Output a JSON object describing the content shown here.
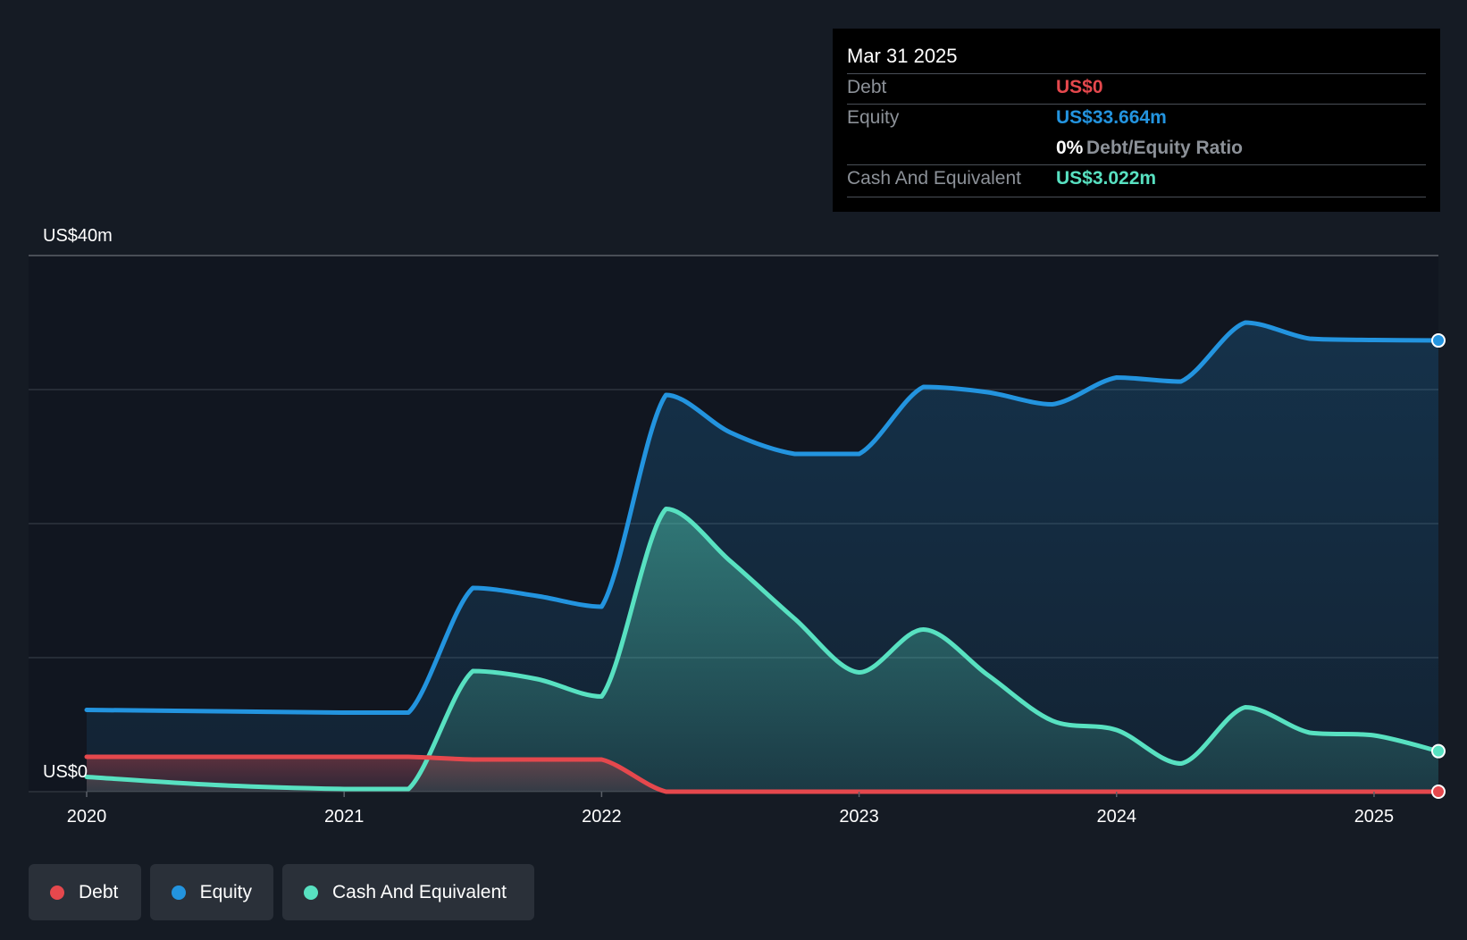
{
  "chart_data": {
    "type": "area",
    "y_axis": {
      "top_label": "US$40m",
      "bottom_label": "US$0",
      "ylim": [
        0,
        40
      ],
      "gridlines": [
        0,
        10,
        20,
        30,
        40
      ],
      "unit": "US$m"
    },
    "x_axis": {
      "ticks": [
        "2020",
        "2021",
        "2022",
        "2023",
        "2024",
        "2025"
      ],
      "range": [
        2020.0,
        2025.25
      ]
    },
    "legend_position": "bottom-left",
    "series": [
      {
        "name": "Debt",
        "color": "#e5484d",
        "x": [
          2020.0,
          2020.5,
          2021.0,
          2021.25,
          2021.5,
          2021.75,
          2022.0,
          2022.25,
          2022.5,
          2023.0,
          2023.5,
          2024.0,
          2024.5,
          2025.0,
          2025.25
        ],
        "values": [
          2.6,
          2.6,
          2.6,
          2.6,
          2.4,
          2.4,
          2.4,
          0,
          0,
          0,
          0,
          0,
          0,
          0,
          0
        ]
      },
      {
        "name": "Equity",
        "color": "#2394df",
        "x": [
          2020.0,
          2020.5,
          2021.0,
          2021.25,
          2021.5,
          2021.75,
          2022.0,
          2022.25,
          2022.5,
          2022.75,
          2023.0,
          2023.25,
          2023.5,
          2023.75,
          2024.0,
          2024.25,
          2024.5,
          2024.75,
          2025.0,
          2025.25
        ],
        "values": [
          6.1,
          6.0,
          5.9,
          5.9,
          15.2,
          14.6,
          13.8,
          29.6,
          26.8,
          25.2,
          25.2,
          30.2,
          29.8,
          28.9,
          30.9,
          30.6,
          35.0,
          33.8,
          33.7,
          33.664
        ]
      },
      {
        "name": "Cash And Equivalent",
        "color": "#58e1c1",
        "x": [
          2020.0,
          2020.5,
          2021.0,
          2021.25,
          2021.5,
          2021.75,
          2022.0,
          2022.25,
          2022.5,
          2022.75,
          2023.0,
          2023.25,
          2023.5,
          2023.75,
          2024.0,
          2024.25,
          2024.5,
          2024.75,
          2025.0,
          2025.25
        ],
        "values": [
          1.1,
          0.5,
          0.2,
          0.2,
          9.0,
          8.4,
          7.1,
          21.1,
          17.2,
          12.9,
          8.9,
          12.1,
          8.7,
          5.3,
          4.6,
          2.1,
          6.3,
          4.4,
          4.2,
          3.022
        ]
      }
    ]
  },
  "tooltip": {
    "date": "Mar 31 2025",
    "rows": [
      {
        "label": "Debt",
        "value": "US$0",
        "color": "#e5484d"
      },
      {
        "label": "Equity",
        "value": "US$33.664m",
        "color": "#2394df"
      },
      {
        "ratio_value": "0%",
        "ratio_label": "Debt/Equity Ratio"
      },
      {
        "label": "Cash And Equivalent",
        "value": "US$3.022m",
        "color": "#58e1c1"
      }
    ]
  },
  "legend": [
    {
      "label": "Debt",
      "color": "#e5484d"
    },
    {
      "label": "Equity",
      "color": "#2394df"
    },
    {
      "label": "Cash And Equivalent",
      "color": "#58e1c1"
    }
  ]
}
